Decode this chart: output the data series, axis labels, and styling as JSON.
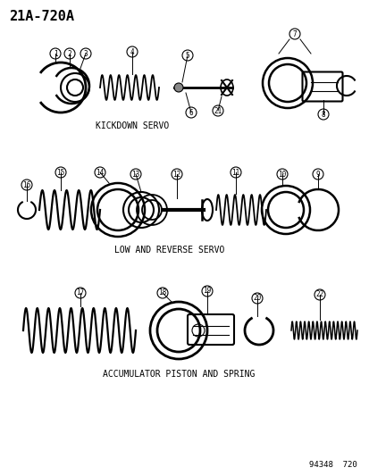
{
  "title": "21A-720A",
  "bg_color": "#ffffff",
  "text_color": "#000000",
  "section1_label": "KICKDOWN SERVO",
  "section2_label": "LOW AND REVERSE SERVO",
  "section3_label": "ACCUMULATOR PISTON AND SPRING",
  "bottom_ref": "94348  720",
  "fig_width": 4.14,
  "fig_height": 5.33,
  "dpi": 100
}
